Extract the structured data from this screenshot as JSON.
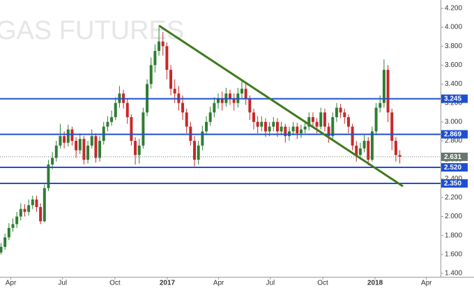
{
  "chart_data": {
    "type": "candlestick",
    "watermark": "GAS FUTURES",
    "up_color": "#2f7d32",
    "down_color": "#c62828",
    "xlim": [
      2016.195,
      2018.315
    ],
    "xticks": [
      {
        "value": 2016.247,
        "label": "Apr"
      },
      {
        "value": 2016.496,
        "label": "Jul"
      },
      {
        "value": 2016.748,
        "label": "Oct"
      },
      2017,
      {
        "value": 2017.247,
        "label": "Apr"
      },
      {
        "value": 2017.496,
        "label": "Jul"
      },
      {
        "value": 2017.748,
        "label": "Oct"
      },
      2018,
      {
        "value": 2018.247,
        "label": "Apr"
      }
    ],
    "ylim": [
      1.363,
      4.288
    ],
    "yticks": [
      {
        "value": 1.4,
        "label": "1.400"
      },
      {
        "value": 1.6,
        "label": "1.600"
      },
      {
        "value": 1.8,
        "label": "1.800"
      },
      {
        "value": 2.0,
        "label": "2.000"
      },
      {
        "value": 2.2,
        "label": "2.200"
      },
      {
        "value": 2.4,
        "label": "2.400"
      },
      {
        "value": 2.6,
        "label": "2.600"
      },
      {
        "value": 2.8,
        "label": "2.800"
      },
      {
        "value": 3.0,
        "label": "3.000"
      },
      {
        "value": 3.2,
        "label": "3.200"
      },
      {
        "value": 3.4,
        "label": "3.400"
      },
      {
        "value": 3.6,
        "label": "3.600"
      },
      {
        "value": 3.8,
        "label": "3.800"
      },
      {
        "value": 4.0,
        "label": "4.000"
      },
      {
        "value": 4.2,
        "label": "4.200"
      }
    ],
    "levels": [
      {
        "value": 3.245,
        "label": "3.245"
      },
      {
        "value": 2.869,
        "label": "2.869"
      },
      {
        "value": 2.52,
        "label": "2.520"
      },
      {
        "value": 2.35,
        "label": "2.350"
      }
    ],
    "level_color": "#1f4fd0",
    "last": {
      "value": 2.631,
      "label": "2.631"
    },
    "last_color": "#66776a",
    "trendline": {
      "x": [
        2016.96,
        2018.134
      ],
      "y": [
        4.017,
        2.32
      ],
      "color": "#3f7a1e"
    },
    "x": [
      2016.2,
      2016.219,
      2016.238,
      2016.257,
      2016.276,
      2016.295,
      2016.314,
      2016.333,
      2016.352,
      2016.371,
      2016.39,
      2016.409,
      2016.428,
      2016.447,
      2016.466,
      2016.485,
      2016.504,
      2016.523,
      2016.542,
      2016.561,
      2016.58,
      2016.599,
      2016.618,
      2016.637,
      2016.656,
      2016.675,
      2016.694,
      2016.713,
      2016.732,
      2016.751,
      2016.77,
      2016.789,
      2016.808,
      2016.827,
      2016.846,
      2016.865,
      2016.884,
      2016.903,
      2016.922,
      2016.941,
      2016.96,
      2016.979,
      2016.998,
      2017.017,
      2017.036,
      2017.055,
      2017.074,
      2017.093,
      2017.112,
      2017.131,
      2017.15,
      2017.169,
      2017.188,
      2017.207,
      2017.226,
      2017.245,
      2017.264,
      2017.283,
      2017.302,
      2017.321,
      2017.34,
      2017.359,
      2017.378,
      2017.397,
      2017.416,
      2017.435,
      2017.454,
      2017.473,
      2017.492,
      2017.511,
      2017.53,
      2017.549,
      2017.568,
      2017.587,
      2017.606,
      2017.625,
      2017.644,
      2017.663,
      2017.682,
      2017.701,
      2017.72,
      2017.739,
      2017.758,
      2017.777,
      2017.796,
      2017.815,
      2017.834,
      2017.853,
      2017.872,
      2017.891,
      2017.91,
      2017.929,
      2017.948,
      2017.967,
      2017.986,
      2018.005,
      2018.024,
      2018.043,
      2018.062,
      2018.081,
      2018.1,
      2018.119
    ],
    "open": [
      1.62,
      1.68,
      1.78,
      1.88,
      1.92,
      2.0,
      2.08,
      2.05,
      2.12,
      2.18,
      2.1,
      1.95,
      2.3,
      2.55,
      2.62,
      2.75,
      2.85,
      2.78,
      2.92,
      2.8,
      2.7,
      2.82,
      2.6,
      2.75,
      2.85,
      2.62,
      2.8,
      2.95,
      3.0,
      3.05,
      3.2,
      3.3,
      3.2,
      3.05,
      2.8,
      2.65,
      2.75,
      3.1,
      3.4,
      3.6,
      3.75,
      3.85,
      3.8,
      3.55,
      3.35,
      3.3,
      3.2,
      3.1,
      2.95,
      2.8,
      2.6,
      2.75,
      2.9,
      3.0,
      3.1,
      3.2,
      3.25,
      3.2,
      3.3,
      3.25,
      3.2,
      3.3,
      3.35,
      3.25,
      3.1,
      3.0,
      2.95,
      3.0,
      2.9,
      2.95,
      3.0,
      2.9,
      2.95,
      2.85,
      2.9,
      2.95,
      2.88,
      2.92,
      2.95,
      3.05,
      3.0,
      2.95,
      3.1,
      2.95,
      2.85,
      3.05,
      3.15,
      3.1,
      3.05,
      2.95,
      2.75,
      2.65,
      2.72,
      2.8,
      2.6,
      2.9,
      3.15,
      3.2,
      3.55,
      3.1,
      2.8,
      2.65
    ],
    "high": [
      1.72,
      1.82,
      1.93,
      1.98,
      2.05,
      2.14,
      2.13,
      2.18,
      2.22,
      2.22,
      2.14,
      2.34,
      2.6,
      2.68,
      2.8,
      2.98,
      2.9,
      2.97,
      2.95,
      2.84,
      2.88,
      2.85,
      2.8,
      2.92,
      2.88,
      2.85,
      3.0,
      3.06,
      3.12,
      3.26,
      3.38,
      3.34,
      3.24,
      3.08,
      2.84,
      2.82,
      3.15,
      3.45,
      3.68,
      3.82,
      4.0,
      3.95,
      3.84,
      3.6,
      3.45,
      3.38,
      3.28,
      3.14,
      3.0,
      2.85,
      2.8,
      2.96,
      3.06,
      3.16,
      3.26,
      3.3,
      3.32,
      3.36,
      3.34,
      3.3,
      3.36,
      3.44,
      3.4,
      3.28,
      3.14,
      3.06,
      3.06,
      3.04,
      3.0,
      3.05,
      3.04,
      3.0,
      2.98,
      2.95,
      3.0,
      2.99,
      2.97,
      3.0,
      3.1,
      3.1,
      3.04,
      3.15,
      3.14,
      2.99,
      3.1,
      3.2,
      3.19,
      3.14,
      3.08,
      2.98,
      2.8,
      2.78,
      2.86,
      2.84,
      2.95,
      3.2,
      3.28,
      3.66,
      3.6,
      3.14,
      2.84,
      2.7
    ],
    "low": [
      1.6,
      1.65,
      1.75,
      1.84,
      1.88,
      1.96,
      2.0,
      2.01,
      2.08,
      2.05,
      1.92,
      1.94,
      2.27,
      2.5,
      2.58,
      2.72,
      2.72,
      2.74,
      2.75,
      2.62,
      2.66,
      2.55,
      2.56,
      2.72,
      2.57,
      2.58,
      2.76,
      2.9,
      2.96,
      3.02,
      3.15,
      3.14,
      2.98,
      2.75,
      2.55,
      2.56,
      2.72,
      3.06,
      3.35,
      3.52,
      3.7,
      3.7,
      3.45,
      3.28,
      3.2,
      3.12,
      3.02,
      2.88,
      2.75,
      2.53,
      2.55,
      2.7,
      2.86,
      2.96,
      3.05,
      3.14,
      3.12,
      3.16,
      3.18,
      3.12,
      3.15,
      3.24,
      3.18,
      3.02,
      2.92,
      2.88,
      2.9,
      2.84,
      2.85,
      2.9,
      2.84,
      2.86,
      2.78,
      2.8,
      2.86,
      2.82,
      2.83,
      2.88,
      2.91,
      2.94,
      2.88,
      2.92,
      2.9,
      2.78,
      2.82,
      3.0,
      3.04,
      2.98,
      2.88,
      2.7,
      2.58,
      2.6,
      2.68,
      2.54,
      2.58,
      2.86,
      3.1,
      3.15,
      3.0,
      2.7,
      2.58,
      2.56
    ],
    "close": [
      1.68,
      1.78,
      1.88,
      1.92,
      2.0,
      2.08,
      2.05,
      2.12,
      2.18,
      2.1,
      1.95,
      2.3,
      2.55,
      2.62,
      2.75,
      2.85,
      2.78,
      2.92,
      2.8,
      2.7,
      2.82,
      2.6,
      2.75,
      2.85,
      2.62,
      2.8,
      2.95,
      3.0,
      3.05,
      3.2,
      3.3,
      3.2,
      3.05,
      2.8,
      2.65,
      2.75,
      3.1,
      3.4,
      3.6,
      3.75,
      3.85,
      3.8,
      3.55,
      3.35,
      3.3,
      3.2,
      3.1,
      2.95,
      2.8,
      2.6,
      2.75,
      2.9,
      3.0,
      3.1,
      3.2,
      3.25,
      3.2,
      3.3,
      3.25,
      3.2,
      3.3,
      3.35,
      3.25,
      3.1,
      3.0,
      2.95,
      3.0,
      2.9,
      2.95,
      3.0,
      2.9,
      2.95,
      2.85,
      2.9,
      2.95,
      2.88,
      2.92,
      2.95,
      3.05,
      3.0,
      2.95,
      3.1,
      2.95,
      2.85,
      3.05,
      3.15,
      3.1,
      3.05,
      2.95,
      2.75,
      2.65,
      2.72,
      2.8,
      2.6,
      2.9,
      3.15,
      3.2,
      3.55,
      3.1,
      2.8,
      2.65,
      2.631
    ]
  }
}
